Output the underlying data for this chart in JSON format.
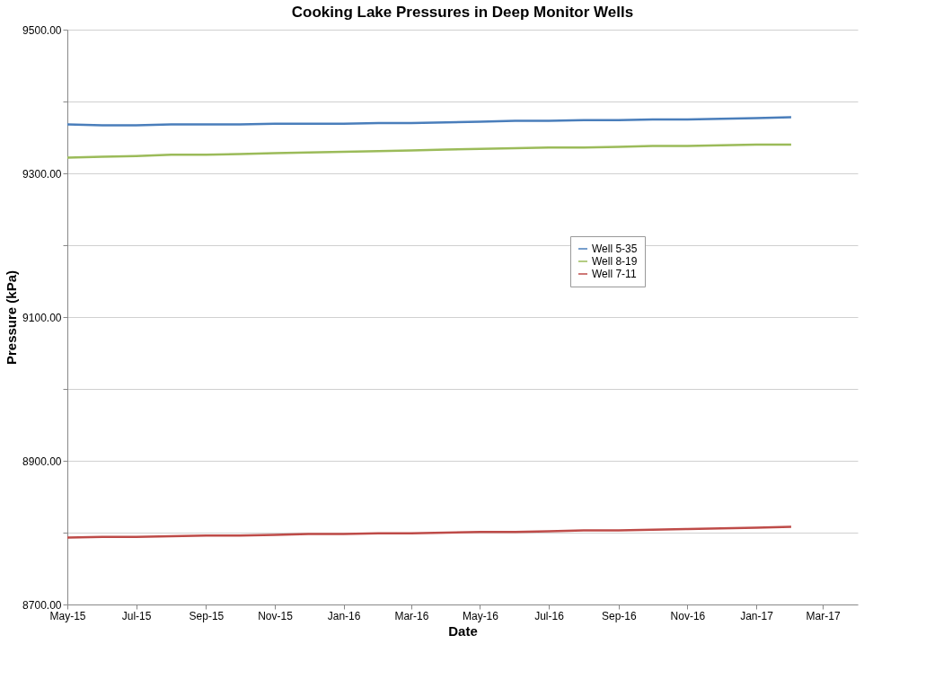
{
  "chart_data": {
    "type": "line",
    "title": "Cooking Lake Pressures in Deep Monitor Wells",
    "xlabel": "Date",
    "ylabel": "Pressure (kPa)",
    "x": [
      "2015-05",
      "2015-06",
      "2015-07",
      "2015-08",
      "2015-09",
      "2015-10",
      "2015-11",
      "2015-12",
      "2016-01",
      "2016-02",
      "2016-03",
      "2016-04",
      "2016-05",
      "2016-06",
      "2016-07",
      "2016-08",
      "2016-09",
      "2016-10",
      "2016-11",
      "2016-12",
      "2017-01",
      "2017-02"
    ],
    "series": [
      {
        "name": "Well 5-35",
        "color": "#4a7ebb",
        "values": [
          9368,
          9367,
          9367,
          9368,
          9368,
          9368,
          9369,
          9369,
          9369,
          9370,
          9370,
          9371,
          9372,
          9373,
          9373,
          9374,
          9374,
          9375,
          9375,
          9376,
          9377,
          9378
        ]
      },
      {
        "name": "Well 8-19",
        "color": "#9bbb59",
        "values": [
          9322,
          9323,
          9324,
          9326,
          9326,
          9327,
          9328,
          9329,
          9330,
          9331,
          9332,
          9333,
          9334,
          9335,
          9336,
          9336,
          9337,
          9338,
          9338,
          9339,
          9340,
          9340
        ]
      },
      {
        "name": "Well 7-11",
        "color": "#be4b48",
        "values": [
          8793,
          8794,
          8794,
          8795,
          8796,
          8796,
          8797,
          8798,
          8798,
          8799,
          8799,
          8800,
          8801,
          8801,
          8802,
          8803,
          8803,
          8804,
          8805,
          8806,
          8807,
          8808
        ]
      }
    ],
    "xlim": [
      "2015-05",
      "2017-04"
    ],
    "xticks": [
      {
        "value": "2015-05",
        "label": "May-15"
      },
      {
        "value": "2015-07",
        "label": "Jul-15"
      },
      {
        "value": "2015-09",
        "label": "Sep-15"
      },
      {
        "value": "2015-11",
        "label": "Nov-15"
      },
      {
        "value": "2016-01",
        "label": "Jan-16"
      },
      {
        "value": "2016-03",
        "label": "Mar-16"
      },
      {
        "value": "2016-05",
        "label": "May-16"
      },
      {
        "value": "2016-07",
        "label": "Jul-16"
      },
      {
        "value": "2016-09",
        "label": "Sep-16"
      },
      {
        "value": "2016-11",
        "label": "Nov-16"
      },
      {
        "value": "2017-01",
        "label": "Jan-17"
      },
      {
        "value": "2017-03",
        "label": "Mar-17"
      }
    ],
    "ylim": [
      8700,
      9500
    ],
    "yticks": [
      {
        "value": 8700,
        "label": "8700.00"
      },
      {
        "value": 8800,
        "label": null
      },
      {
        "value": 8900,
        "label": "8900.00"
      },
      {
        "value": 9000,
        "label": null
      },
      {
        "value": 9100,
        "label": "9100.00"
      },
      {
        "value": 9200,
        "label": null
      },
      {
        "value": 9300,
        "label": "9300.00"
      },
      {
        "value": 9400,
        "label": null
      },
      {
        "value": 9500,
        "label": "9500.00"
      }
    ],
    "grid": "y",
    "legend": "right",
    "marker": "none",
    "line_style": "solid"
  }
}
